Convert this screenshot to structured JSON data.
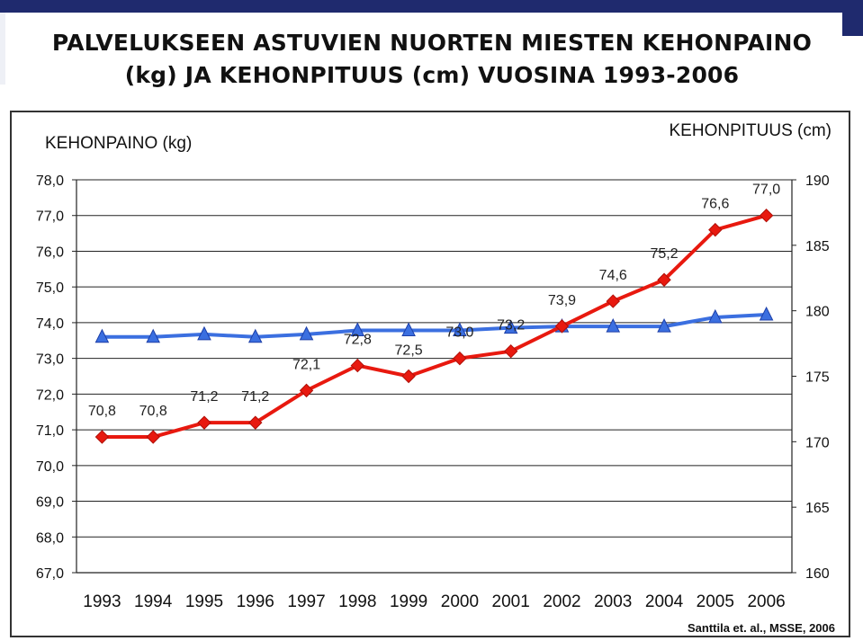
{
  "slide": {
    "title": "PALVELUKSEEN ASTUVIEN NUORTEN MIESTEN KEHONPAINO (kg) JA KEHONPITUUS (cm) VUOSINA 1993-2006"
  },
  "colors": {
    "top_bar": "#1f2a6e",
    "weight_series": "#e8190f",
    "height_series": "#3b6fe0"
  },
  "chart_data": {
    "type": "line",
    "y_left_label": "KEHONPAINO (kg)",
    "y_right_label": "KEHONPITUUS (cm)",
    "ylim_left": [
      67,
      78
    ],
    "ylim_right": [
      160,
      190
    ],
    "yticks_left": [
      "78,0",
      "77,0",
      "76,0",
      "75,0",
      "74,0",
      "73,0",
      "72,0",
      "71,0",
      "70,0",
      "69,0",
      "68,0",
      "67,0"
    ],
    "yticks_right": [
      "190",
      "185",
      "180",
      "175",
      "170",
      "165",
      "160"
    ],
    "categories": [
      "1993",
      "1994",
      "1995",
      "1996",
      "1997",
      "1998",
      "1999",
      "2000",
      "2001",
      "2002",
      "2003",
      "2004",
      "2005",
      "2006"
    ],
    "grid": true,
    "series": [
      {
        "axis": "left",
        "marker": "diamond",
        "values": [
          70.8,
          70.8,
          71.2,
          71.2,
          72.1,
          72.8,
          72.5,
          73.0,
          73.2,
          73.9,
          74.6,
          75.2,
          76.6,
          77.0
        ],
        "labels": [
          "70,8",
          "70,8",
          "71,2",
          "71,2",
          "72,1",
          "72,8",
          "72,5",
          "73,0",
          "73,2",
          "73,9",
          "74,6",
          "75,2",
          "76,6",
          "77,0"
        ]
      },
      {
        "axis": "right",
        "marker": "triangle",
        "values": [
          178.0,
          178.0,
          178.2,
          178.0,
          178.2,
          178.5,
          178.5,
          178.5,
          178.7,
          178.8,
          178.8,
          178.8,
          179.5,
          179.7
        ]
      }
    ],
    "source": "Santtila et. al., MSSE, 2006"
  }
}
